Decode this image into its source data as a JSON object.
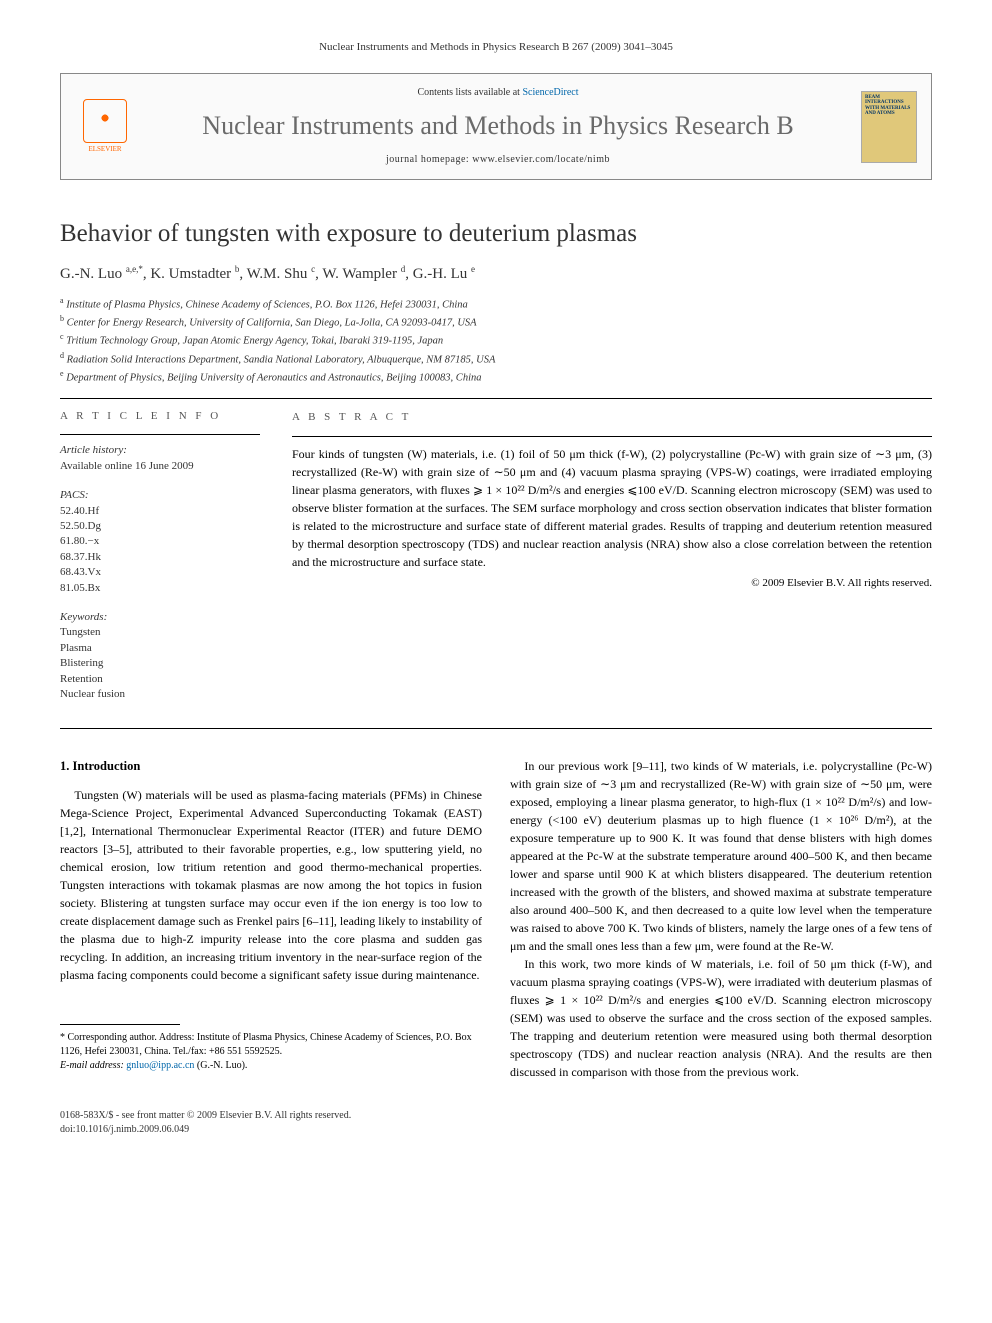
{
  "journal_header": "Nuclear Instruments and Methods in Physics Research B 267 (2009) 3041–3045",
  "header_box": {
    "elsevier_label": "ELSEVIER",
    "contents_prefix": "Contents lists available at ",
    "contents_link": "ScienceDirect",
    "journal_name": "Nuclear Instruments and Methods in Physics Research B",
    "homepage_prefix": "journal homepage: ",
    "homepage_url": "www.elsevier.com/locate/nimb",
    "cover_text": "BEAM INTERACTIONS WITH MATERIALS AND ATOMS"
  },
  "article": {
    "title": "Behavior of tungsten with exposure to deuterium plasmas",
    "authors_html": "G.-N. Luo <sup>a,e,*</sup>, K. Umstadter <sup>b</sup>, W.M. Shu <sup>c</sup>, W. Wampler <sup>d</sup>, G.-H. Lu <sup>e</sup>",
    "affiliations": [
      {
        "sup": "a",
        "text": "Institute of Plasma Physics, Chinese Academy of Sciences, P.O. Box 1126, Hefei 230031, China"
      },
      {
        "sup": "b",
        "text": "Center for Energy Research, University of California, San Diego, La-Jolla, CA 92093-0417, USA"
      },
      {
        "sup": "c",
        "text": "Tritium Technology Group, Japan Atomic Energy Agency, Tokai, Ibaraki 319-1195, Japan"
      },
      {
        "sup": "d",
        "text": "Radiation Solid Interactions Department, Sandia National Laboratory, Albuquerque, NM 87185, USA"
      },
      {
        "sup": "e",
        "text": "Department of Physics, Beijing University of Aeronautics and Astronautics, Beijing 100083, China"
      }
    ]
  },
  "article_info": {
    "heading": "A R T I C L E   I N F O",
    "history_label": "Article history:",
    "history_text": "Available online 16 June 2009",
    "pacs_label": "PACS:",
    "pacs": [
      "52.40.Hf",
      "52.50.Dg",
      "61.80.−x",
      "68.37.Hk",
      "68.43.Vx",
      "81.05.Bx"
    ],
    "keywords_label": "Keywords:",
    "keywords": [
      "Tungsten",
      "Plasma",
      "Blistering",
      "Retention",
      "Nuclear fusion"
    ]
  },
  "abstract": {
    "heading": "A B S T R A C T",
    "text": "Four kinds of tungsten (W) materials, i.e. (1) foil of 50 μm thick (f-W), (2) polycrystalline (Pc-W) with grain size of ∼3 μm, (3) recrystallized (Re-W) with grain size of ∼50 μm and (4) vacuum plasma spraying (VPS-W) coatings, were irradiated employing linear plasma generators, with fluxes ⩾ 1 × 10²² D/m²/s and energies ⩽100 eV/D. Scanning electron microscopy (SEM) was used to observe blister formation at the surfaces. The SEM surface morphology and cross section observation indicates that blister formation is related to the microstructure and surface state of different material grades. Results of trapping and deuterium retention measured by thermal desorption spectroscopy (TDS) and nuclear reaction analysis (NRA) show also a close correlation between the retention and the microstructure and surface state.",
    "copyright": "© 2009 Elsevier B.V. All rights reserved."
  },
  "body": {
    "section1_heading": "1. Introduction",
    "col1_p1": "Tungsten (W) materials will be used as plasma-facing materials (PFMs) in Chinese Mega-Science Project, Experimental Advanced Superconducting Tokamak (EAST) [1,2], International Thermonuclear Experimental Reactor (ITER) and future DEMO reactors [3–5], attributed to their favorable properties, e.g., low sputtering yield, no chemical erosion, low tritium retention and good thermo-mechanical properties. Tungsten interactions with tokamak plasmas are now among the hot topics in fusion society. Blistering at tungsten surface may occur even if the ion energy is too low to create displacement damage such as Frenkel pairs [6–11], leading likely to instability of the plasma due to high-Z impurity release into the core plasma and sudden gas recycling. In addition, an increasing tritium inventory in the near-surface region of the plasma facing components could become a significant safety issue during maintenance.",
    "col2_p1": "In our previous work [9–11], two kinds of W materials, i.e. polycrystalline (Pc-W) with grain size of ∼3 μm and recrystallized (Re-W) with grain size of ∼50 μm, were exposed, employing a linear plasma generator, to high-flux (1 × 10²² D/m²/s) and low-energy (<100 eV) deuterium plasmas up to high fluence (1 × 10²⁶ D/m²), at the exposure temperature up to 900 K. It was found that dense blisters with high domes appeared at the Pc-W at the substrate temperature around 400–500 K, and then became lower and sparse until 900 K at which blisters disappeared. The deuterium retention increased with the growth of the blisters, and showed maxima at substrate temperature also around 400–500 K, and then decreased to a quite low level when the temperature was raised to above 700 K. Two kinds of blisters, namely the large ones of a few tens of μm and the small ones less than a few μm, were found at the Re-W.",
    "col2_p2": "In this work, two more kinds of W materials, i.e. foil of 50 μm thick (f-W), and vacuum plasma spraying coatings (VPS-W), were irradiated with deuterium plasmas of fluxes ⩾ 1 × 10²² D/m²/s and energies ⩽100 eV/D. Scanning electron microscopy (SEM) was used to observe the surface and the cross section of the exposed samples. The trapping and deuterium retention were measured using both thermal desorption spectroscopy (TDS) and nuclear reaction analysis (NRA). And the results are then discussed in comparison with those from the previous work."
  },
  "footnote": {
    "corresponding": "* Corresponding author. Address: Institute of Plasma Physics, Chinese Academy of Sciences, P.O. Box 1126, Hefei 230031, China. Tel./fax: +86 551 5592525.",
    "email_label": "E-mail address:",
    "email": "gnluo@ipp.ac.cn",
    "email_who": "(G.-N. Luo)."
  },
  "footer": {
    "line1": "0168-583X/$ - see front matter © 2009 Elsevier B.V. All rights reserved.",
    "line2": "doi:10.1016/j.nimb.2009.06.049"
  },
  "colors": {
    "link": "#0066aa",
    "elsevier_orange": "#ff6600",
    "journal_gray": "#6a6a6a",
    "cover_bg": "#e0c87a"
  }
}
